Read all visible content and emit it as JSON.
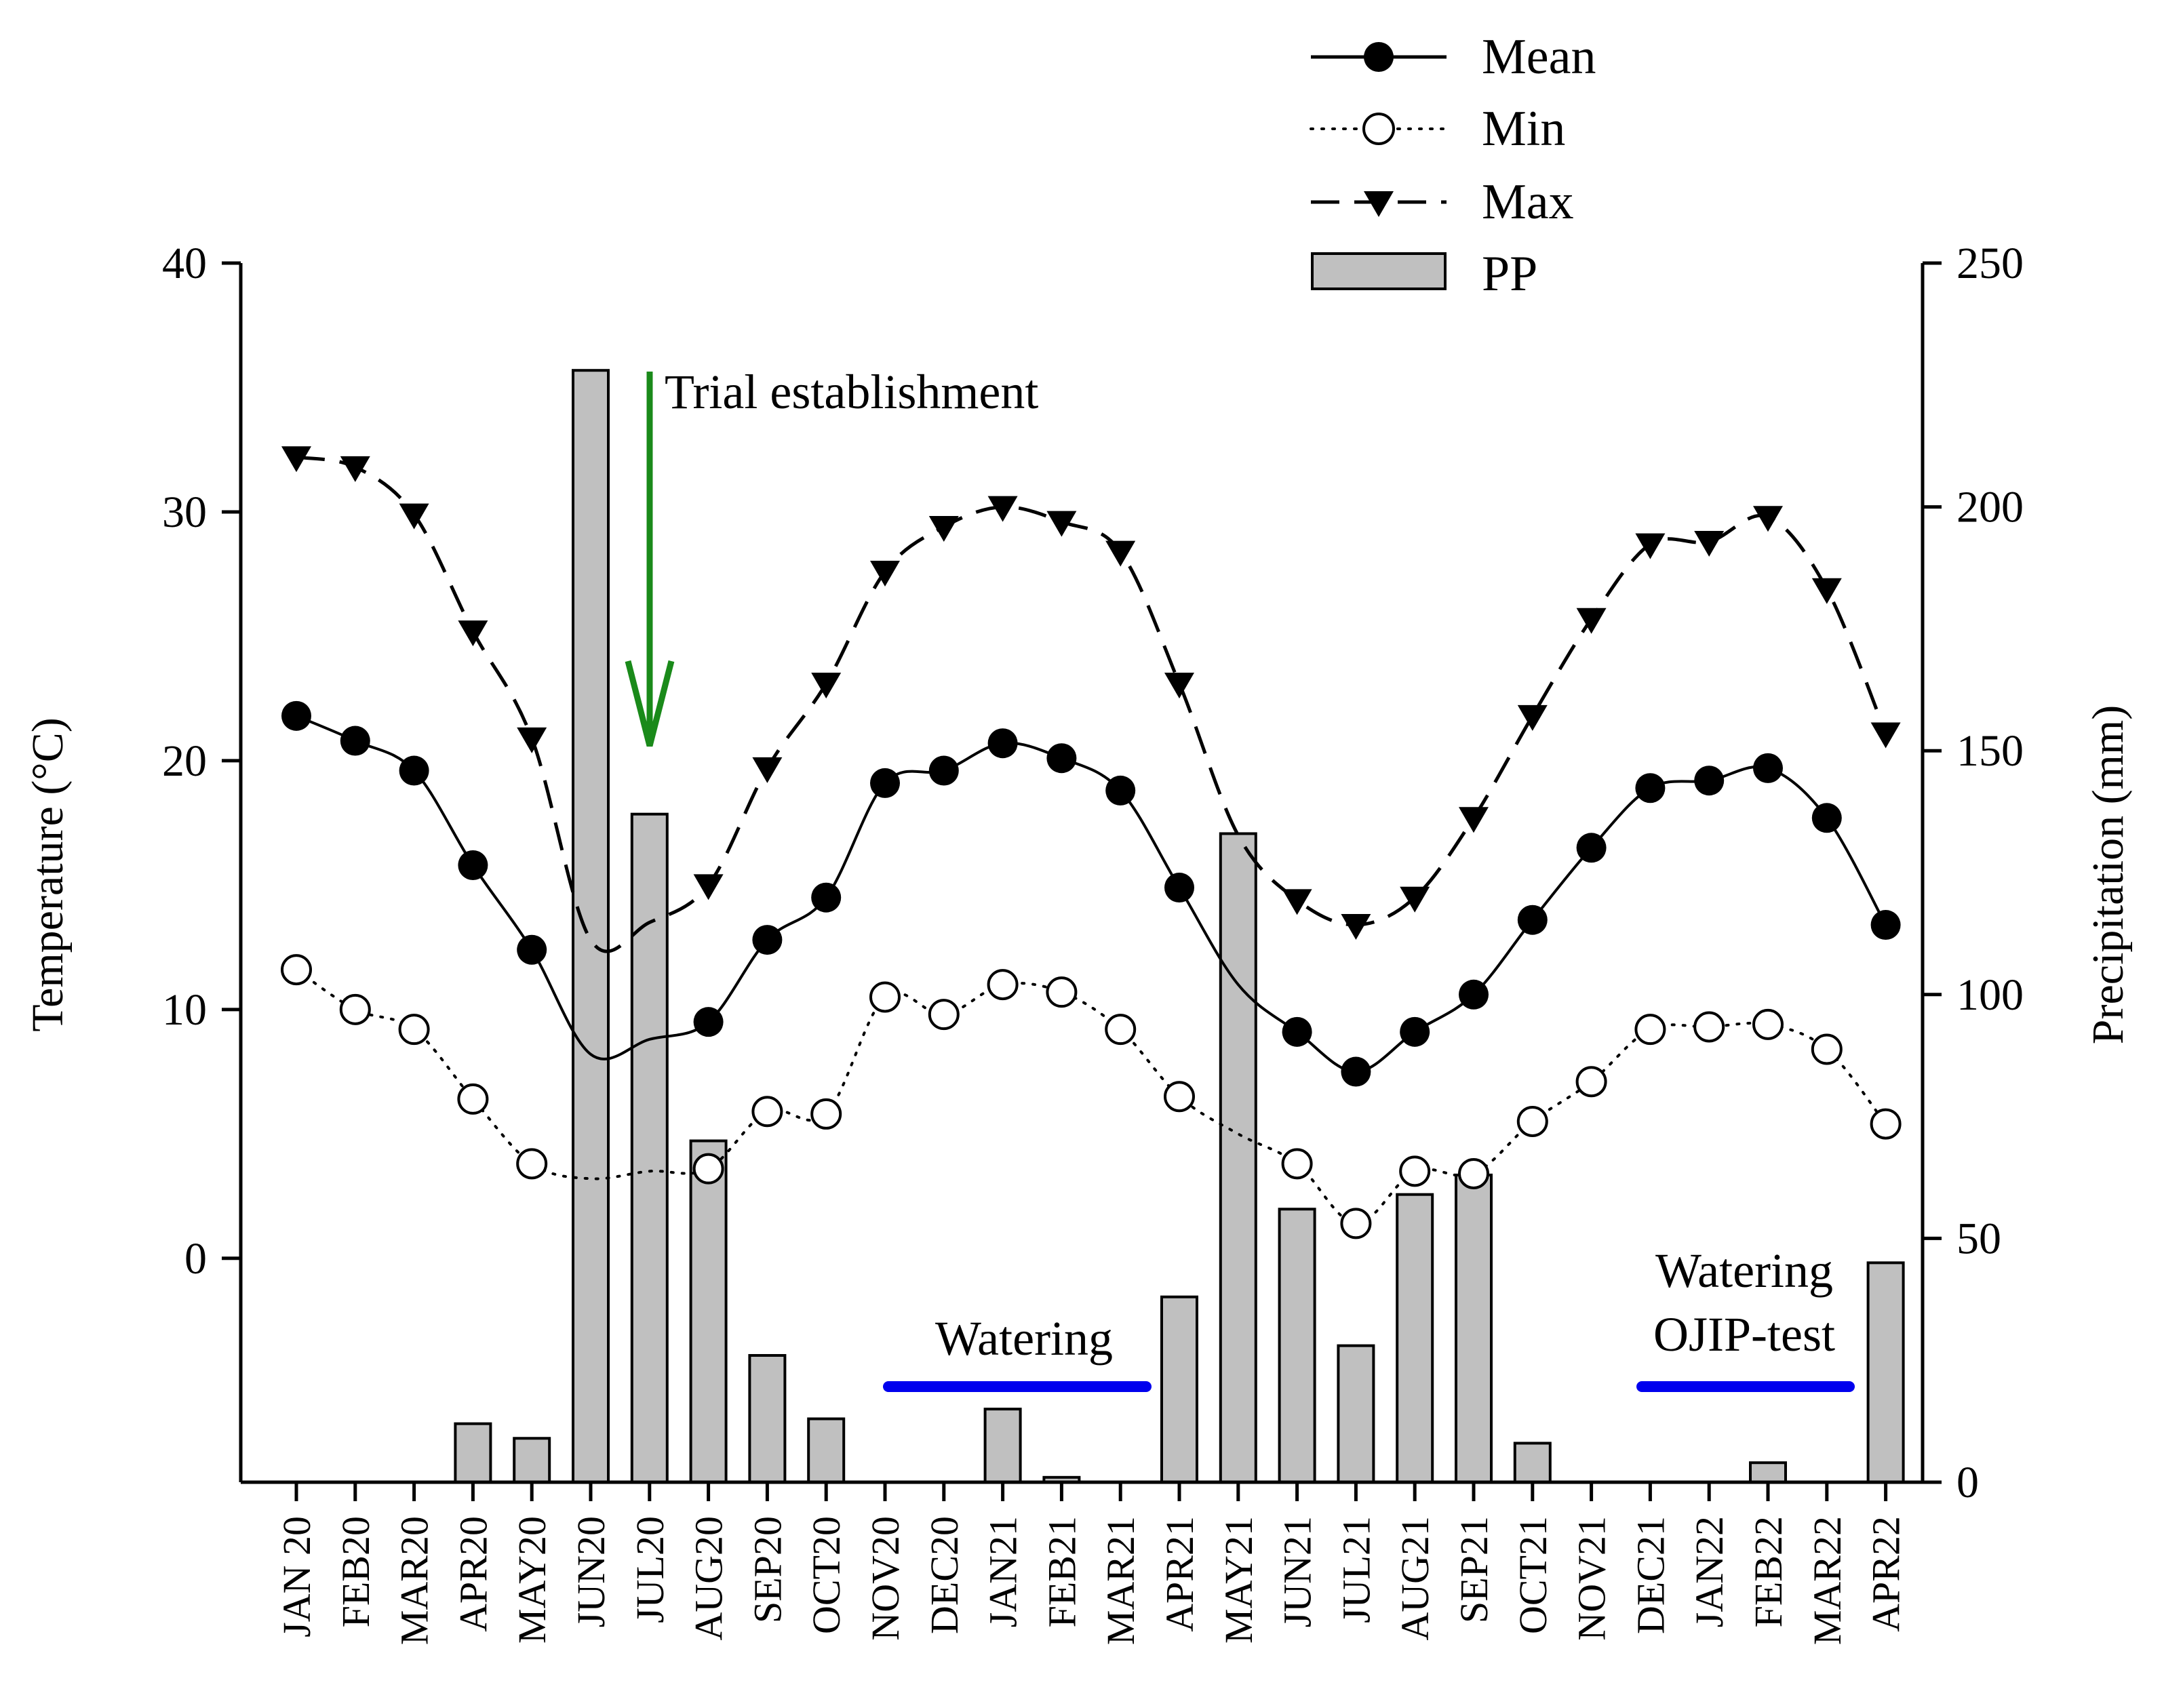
{
  "chart_data": {
    "type": "line+bar",
    "categories": [
      "JAN 20",
      "FEB20",
      "MAR20",
      "APR20",
      "MAY20",
      "JUN20",
      "JUL20",
      "AUG20",
      "SEP20",
      "OCT20",
      "NOV20",
      "DEC20",
      "JAN21",
      "FEB21",
      "MAR21",
      "APR21",
      "MAY21",
      "JUN21",
      "JUL21",
      "AUG21",
      "SEP21",
      "OCT21",
      "NOV21",
      "DEC21",
      "JAN22",
      "FEB22",
      "MAR22",
      "APR22"
    ],
    "series": [
      {
        "name": "Mean",
        "axis": "left",
        "style": "solid",
        "marker": "filled-circle",
        "values": [
          21.8,
          20.8,
          19.6,
          15.8,
          12.4,
          8.2,
          8.8,
          9.5,
          12.8,
          14.5,
          19.1,
          19.6,
          20.7,
          20.1,
          18.8,
          14.9,
          11.0,
          9.1,
          7.5,
          9.1,
          10.6,
          13.6,
          16.5,
          18.9,
          19.2,
          19.7,
          17.7,
          13.4
        ]
      },
      {
        "name": "Min",
        "axis": "left",
        "style": "dotted",
        "marker": "open-circle",
        "values": [
          11.6,
          10.0,
          9.2,
          6.4,
          3.8,
          3.2,
          3.5,
          3.6,
          5.9,
          5.8,
          10.5,
          9.8,
          11.0,
          10.7,
          9.2,
          6.5,
          5.0,
          3.8,
          1.4,
          3.5,
          3.4,
          5.5,
          7.1,
          9.2,
          9.3,
          9.4,
          8.4,
          5.4
        ]
      },
      {
        "name": "Max",
        "axis": "left",
        "style": "dashed",
        "marker": "filled-triangle-down",
        "values": [
          32.2,
          31.8,
          29.9,
          25.2,
          20.9,
          12.8,
          13.5,
          15.0,
          19.7,
          23.1,
          27.6,
          29.4,
          30.2,
          29.6,
          28.4,
          23.1,
          17.0,
          14.4,
          13.4,
          14.5,
          17.7,
          21.8,
          25.7,
          28.7,
          28.8,
          29.8,
          26.9,
          21.1
        ]
      },
      {
        "name": "PP",
        "axis": "right",
        "style": "bar",
        "values": [
          0,
          0,
          0,
          12,
          9,
          228,
          137,
          70,
          26,
          13,
          0,
          0,
          15,
          1,
          0,
          38,
          133,
          56,
          28,
          59,
          63,
          8,
          0,
          0,
          0,
          4,
          0,
          45
        ]
      }
    ],
    "ylabel": "Temperature (°C)",
    "y2label": "Precipitation (mm)",
    "ylim": [
      -9,
      40
    ],
    "yticks": [
      0,
      10,
      20,
      30,
      40
    ],
    "y2lim": [
      0,
      250
    ],
    "y2ticks": [
      0,
      50,
      100,
      150,
      200,
      250
    ],
    "legend": {
      "placement": "top-right",
      "entries": [
        "Mean",
        "Min",
        "Max",
        "PP"
      ]
    },
    "annotations": {
      "trial": {
        "text": "Trial establishment",
        "category": "JUL20",
        "color": "#1a8a1a"
      },
      "watering1": {
        "text": "Watering",
        "from": "NOV20",
        "to": "APR21",
        "color": "#0000ee"
      },
      "watering2": {
        "line1": "Watering",
        "line2": "OJIP-test",
        "from": "DEC21",
        "to": "APR22",
        "color": "#0000ee"
      }
    },
    "colors": {
      "bar_fill": "#c0c0c0",
      "axis": "#000000"
    }
  }
}
